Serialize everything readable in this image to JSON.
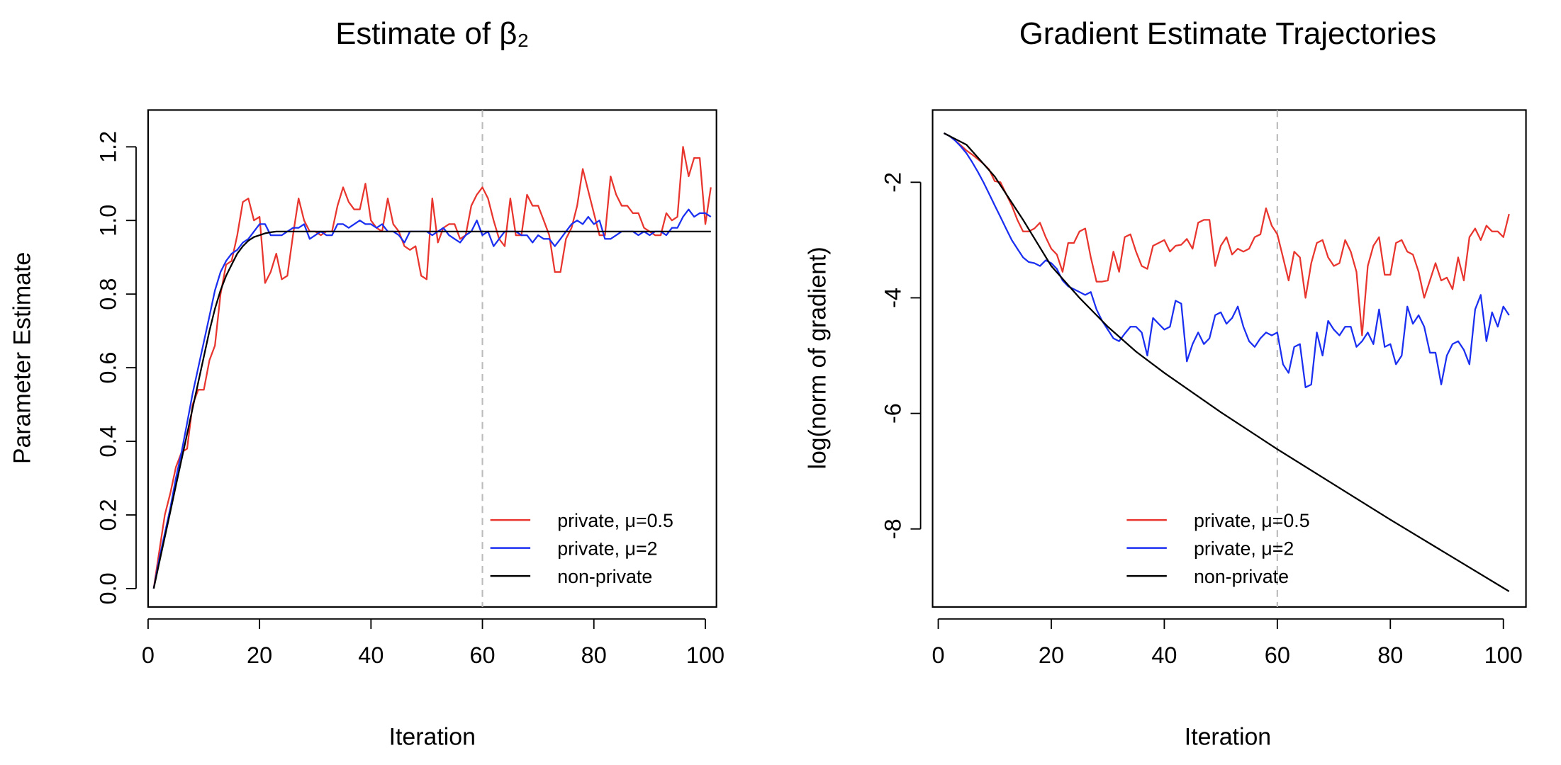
{
  "chart_data": [
    {
      "type": "line",
      "title": "Estimate of β₂",
      "xlabel": "Iteration",
      "ylabel": "Parameter Estimate",
      "xlim": [
        0,
        102
      ],
      "ylim": [
        -0.05,
        1.3
      ],
      "xticks": [
        0,
        20,
        40,
        60,
        80,
        100
      ],
      "yticks": [
        0.0,
        0.2,
        0.4,
        0.6,
        0.8,
        1.0,
        1.2
      ],
      "ytick_labels": [
        "0.0",
        "0.2",
        "0.4",
        "0.6",
        "0.8",
        "1.0",
        "1.2"
      ],
      "vline": 60,
      "grid": false,
      "legend_position": "bottom-right",
      "series": [
        {
          "name": "private, μ=0.5",
          "color": "#e8352e",
          "y": [
            0,
            0.1,
            0.2,
            0.26,
            0.33,
            0.37,
            0.38,
            0.5,
            0.54,
            0.54,
            0.62,
            0.66,
            0.8,
            0.88,
            0.89,
            0.96,
            1.05,
            1.06,
            1.0,
            1.01,
            0.83,
            0.86,
            0.91,
            0.84,
            0.85,
            0.96,
            1.06,
            1.0,
            0.97,
            0.97,
            0.96,
            0.97,
            0.97,
            1.04,
            1.09,
            1.05,
            1.03,
            1.03,
            1.1,
            1.0,
            0.98,
            0.97,
            1.06,
            0.99,
            0.97,
            0.93,
            0.92,
            0.93,
            0.85,
            0.84,
            1.06,
            0.94,
            0.98,
            0.99,
            0.99,
            0.95,
            0.96,
            1.04,
            1.07,
            1.09,
            1.06,
            1.0,
            0.95,
            0.93,
            1.06,
            0.96,
            0.96,
            1.07,
            1.04,
            1.04,
            1.0,
            0.96,
            0.86,
            0.86,
            0.95,
            0.98,
            1.04,
            1.14,
            1.08,
            1.02,
            0.96,
            0.96,
            1.12,
            1.07,
            1.04,
            1.04,
            1.02,
            1.02,
            0.98,
            0.97,
            0.96,
            0.96,
            1.02,
            1.0,
            1.01,
            1.2,
            1.12,
            1.17,
            1.17,
            0.99,
            1.09
          ]
        },
        {
          "name": "private, μ=2",
          "color": "#1a2ff0",
          "y": [
            0,
            0.08,
            0.15,
            0.22,
            0.3,
            0.37,
            0.45,
            0.53,
            0.6,
            0.67,
            0.74,
            0.81,
            0.86,
            0.89,
            0.91,
            0.92,
            0.94,
            0.95,
            0.97,
            0.99,
            0.99,
            0.96,
            0.96,
            0.96,
            0.97,
            0.98,
            0.98,
            0.99,
            0.95,
            0.96,
            0.97,
            0.96,
            0.96,
            0.99,
            0.99,
            0.98,
            0.99,
            1.0,
            0.99,
            0.99,
            0.98,
            0.99,
            0.97,
            0.97,
            0.96,
            0.94,
            0.97,
            0.97,
            0.97,
            0.97,
            0.96,
            0.97,
            0.98,
            0.96,
            0.95,
            0.94,
            0.96,
            0.97,
            1.0,
            0.96,
            0.97,
            0.93,
            0.95,
            0.97,
            0.97,
            0.97,
            0.96,
            0.96,
            0.94,
            0.96,
            0.95,
            0.95,
            0.93,
            0.95,
            0.97,
            0.99,
            1.0,
            0.99,
            1.01,
            0.99,
            1.0,
            0.95,
            0.95,
            0.96,
            0.97,
            0.97,
            0.97,
            0.96,
            0.97,
            0.96,
            0.97,
            0.97,
            0.96,
            0.98,
            0.98,
            1.01,
            1.03,
            1.01,
            1.02,
            1.02,
            1.01
          ]
        },
        {
          "name": "non-private",
          "color": "#000000",
          "y": [
            0,
            0.07,
            0.14,
            0.21,
            0.28,
            0.35,
            0.42,
            0.49,
            0.56,
            0.63,
            0.7,
            0.76,
            0.81,
            0.85,
            0.88,
            0.91,
            0.93,
            0.945,
            0.955,
            0.96,
            0.965,
            0.968,
            0.97,
            0.97,
            0.97,
            0.97,
            0.97,
            0.97,
            0.97,
            0.97,
            0.97,
            0.97,
            0.97,
            0.97,
            0.97,
            0.97,
            0.97,
            0.97,
            0.97,
            0.97,
            0.97,
            0.97,
            0.97,
            0.97,
            0.97,
            0.97,
            0.97,
            0.97,
            0.97,
            0.97,
            0.97,
            0.97,
            0.97,
            0.97,
            0.97,
            0.97,
            0.97,
            0.97,
            0.97,
            0.97,
            0.97,
            0.97,
            0.97,
            0.97,
            0.97,
            0.97,
            0.97,
            0.97,
            0.97,
            0.97,
            0.97,
            0.97,
            0.97,
            0.97,
            0.97,
            0.97,
            0.97,
            0.97,
            0.97,
            0.97,
            0.97,
            0.97,
            0.97,
            0.97,
            0.97,
            0.97,
            0.97,
            0.97,
            0.97,
            0.97,
            0.97,
            0.97,
            0.97,
            0.97,
            0.97,
            0.97,
            0.97,
            0.97,
            0.97,
            0.97,
            0.97
          ]
        }
      ]
    },
    {
      "type": "line",
      "title": "Gradient Estimate Trajectories",
      "xlabel": "Iteration",
      "ylabel": "log(norm of gradient)",
      "xlim": [
        -1,
        104
      ],
      "ylim": [
        -9.35,
        -0.75
      ],
      "xticks": [
        0,
        20,
        40,
        60,
        80,
        100
      ],
      "yticks": [
        -2,
        -4,
        -6,
        -8
      ],
      "ytick_labels": [
        "-2",
        "-4",
        "-6",
        "-8"
      ],
      "vline": 60,
      "grid": false,
      "legend_position": "bottom-center",
      "series": [
        {
          "name": "private, μ=0.5",
          "color": "#e8352e",
          "y": [
            -1.15,
            -1.2,
            -1.28,
            -1.36,
            -1.45,
            -1.52,
            -1.6,
            -1.68,
            -1.78,
            -1.98,
            -2.0,
            -2.2,
            -2.4,
            -2.65,
            -2.85,
            -2.85,
            -2.8,
            -2.7,
            -2.95,
            -3.15,
            -3.25,
            -3.55,
            -3.05,
            -3.05,
            -2.85,
            -2.8,
            -3.3,
            -3.72,
            -3.72,
            -3.7,
            -3.2,
            -3.55,
            -2.95,
            -2.9,
            -3.2,
            -3.45,
            -3.5,
            -3.1,
            -3.05,
            -3.0,
            -3.2,
            -3.1,
            -3.08,
            -2.98,
            -3.15,
            -2.7,
            -2.65,
            -2.65,
            -3.45,
            -3.1,
            -2.95,
            -3.25,
            -3.15,
            -3.2,
            -3.15,
            -2.95,
            -2.9,
            -2.45,
            -2.75,
            -2.9,
            -3.3,
            -3.7,
            -3.2,
            -3.3,
            -4.0,
            -3.4,
            -3.05,
            -3.0,
            -3.3,
            -3.45,
            -3.4,
            -3.0,
            -3.2,
            -3.55,
            -4.65,
            -3.45,
            -3.1,
            -2.95,
            -3.6,
            -3.6,
            -3.05,
            -3.0,
            -3.2,
            -3.25,
            -3.55,
            -4.0,
            -3.7,
            -3.4,
            -3.7,
            -3.65,
            -3.85,
            -3.3,
            -3.7,
            -2.95,
            -2.8,
            -3.0,
            -2.75,
            -2.85,
            -2.85,
            -2.95,
            -2.55
          ]
        },
        {
          "name": "private, μ=2",
          "color": "#1a2ff0",
          "y": [
            -1.15,
            -1.2,
            -1.28,
            -1.38,
            -1.5,
            -1.65,
            -1.82,
            -2.0,
            -2.2,
            -2.4,
            -2.6,
            -2.8,
            -3.0,
            -3.15,
            -3.3,
            -3.38,
            -3.4,
            -3.45,
            -3.35,
            -3.4,
            -3.5,
            -3.7,
            -3.8,
            -3.85,
            -3.9,
            -3.95,
            -3.9,
            -4.2,
            -4.4,
            -4.55,
            -4.7,
            -4.75,
            -4.62,
            -4.5,
            -4.5,
            -4.6,
            -5.0,
            -4.35,
            -4.45,
            -4.55,
            -4.5,
            -4.05,
            -4.1,
            -5.1,
            -4.8,
            -4.6,
            -4.8,
            -4.7,
            -4.3,
            -4.25,
            -4.45,
            -4.35,
            -4.15,
            -4.5,
            -4.75,
            -4.85,
            -4.7,
            -4.6,
            -4.65,
            -4.6,
            -5.15,
            -5.3,
            -4.85,
            -4.8,
            -5.55,
            -5.5,
            -4.6,
            -5.0,
            -4.4,
            -4.55,
            -4.65,
            -4.5,
            -4.5,
            -4.85,
            -4.75,
            -4.6,
            -4.8,
            -4.2,
            -4.85,
            -4.8,
            -5.15,
            -5.0,
            -4.15,
            -4.45,
            -4.3,
            -4.5,
            -4.95,
            -4.95,
            -5.5,
            -5.0,
            -4.8,
            -4.75,
            -4.9,
            -5.15,
            -4.2,
            -3.95,
            -4.75,
            -4.25,
            -4.5,
            -4.15,
            -4.3
          ]
        },
        {
          "name": "non-private",
          "color": "#000000",
          "x": [
            1,
            5,
            10,
            15,
            20,
            25,
            30,
            35,
            40,
            50,
            60,
            70,
            80,
            90,
            101
          ],
          "y": [
            -1.15,
            -1.35,
            -1.9,
            -2.65,
            -3.45,
            -4.0,
            -4.5,
            -4.93,
            -5.3,
            -5.98,
            -6.62,
            -7.23,
            -7.84,
            -8.43,
            -9.08
          ]
        }
      ]
    }
  ]
}
